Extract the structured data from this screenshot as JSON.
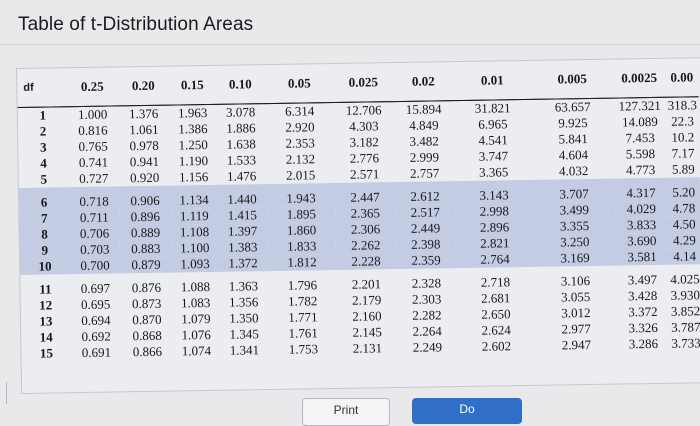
{
  "page": {
    "title": "Table of t-Distribution Areas"
  },
  "table": {
    "header_df": "df",
    "columns": [
      "0.25",
      "0.20",
      "0.15",
      "0.10",
      "0.05",
      "0.025",
      "0.02",
      "0.01",
      "0.005",
      "0.0025",
      "0.00"
    ],
    "rows": [
      {
        "df": "1",
        "values": [
          "1.000",
          "1.376",
          "1.963",
          "3.078",
          "6.314",
          "12.706",
          "15.894",
          "31.821",
          "63.657",
          "127.321",
          "318.3"
        ]
      },
      {
        "df": "2",
        "values": [
          "0.816",
          "1.061",
          "1.386",
          "1.886",
          "2.920",
          "4.303",
          "4.849",
          "6.965",
          "9.925",
          "14.089",
          "22.3"
        ]
      },
      {
        "df": "3",
        "values": [
          "0.765",
          "0.978",
          "1.250",
          "1.638",
          "2.353",
          "3.182",
          "3.482",
          "4.541",
          "5.841",
          "7.453",
          "10.2"
        ]
      },
      {
        "df": "4",
        "values": [
          "0.741",
          "0.941",
          "1.190",
          "1.533",
          "2.132",
          "2.776",
          "2.999",
          "3.747",
          "4.604",
          "5.598",
          "7.17"
        ]
      },
      {
        "df": "5",
        "values": [
          "0.727",
          "0.920",
          "1.156",
          "1.476",
          "2.015",
          "2.571",
          "2.757",
          "3.365",
          "4.032",
          "4.773",
          "5.89"
        ]
      },
      {
        "df": "6",
        "values": [
          "0.718",
          "0.906",
          "1.134",
          "1.440",
          "1.943",
          "2.447",
          "2.612",
          "3.143",
          "3.707",
          "4.317",
          "5.20"
        ]
      },
      {
        "df": "7",
        "values": [
          "0.711",
          "0.896",
          "1.119",
          "1.415",
          "1.895",
          "2.365",
          "2.517",
          "2.998",
          "3.499",
          "4.029",
          "4.78"
        ]
      },
      {
        "df": "8",
        "values": [
          "0.706",
          "0.889",
          "1.108",
          "1.397",
          "1.860",
          "2.306",
          "2.449",
          "2.896",
          "3.355",
          "3.833",
          "4.50"
        ]
      },
      {
        "df": "9",
        "values": [
          "0.703",
          "0.883",
          "1.100",
          "1.383",
          "1.833",
          "2.262",
          "2.398",
          "2.821",
          "3.250",
          "3.690",
          "4.29"
        ]
      },
      {
        "df": "10",
        "values": [
          "0.700",
          "0.879",
          "1.093",
          "1.372",
          "1.812",
          "2.228",
          "2.359",
          "2.764",
          "3.169",
          "3.581",
          "4.14"
        ]
      },
      {
        "df": "11",
        "values": [
          "0.697",
          "0.876",
          "1.088",
          "1.363",
          "1.796",
          "2.201",
          "2.328",
          "2.718",
          "3.106",
          "3.497",
          "4.025"
        ]
      },
      {
        "df": "12",
        "values": [
          "0.695",
          "0.873",
          "1.083",
          "1.356",
          "1.782",
          "2.179",
          "2.303",
          "2.681",
          "3.055",
          "3.428",
          "3.930"
        ]
      },
      {
        "df": "13",
        "values": [
          "0.694",
          "0.870",
          "1.079",
          "1.350",
          "1.771",
          "2.160",
          "2.282",
          "2.650",
          "3.012",
          "3.372",
          "3.852"
        ]
      },
      {
        "df": "14",
        "values": [
          "0.692",
          "0.868",
          "1.076",
          "1.345",
          "1.761",
          "2.145",
          "2.264",
          "2.624",
          "2.977",
          "3.326",
          "3.787"
        ]
      },
      {
        "df": "15",
        "values": [
          "0.691",
          "0.866",
          "1.074",
          "1.341",
          "1.753",
          "2.131",
          "2.249",
          "2.602",
          "2.947",
          "3.286",
          "3.733"
        ]
      }
    ]
  },
  "footer": {
    "print_label": "Print",
    "second_label": "Do"
  },
  "colors": {
    "shaded_row": "#c3cce2",
    "background": "#e9e8ea"
  }
}
